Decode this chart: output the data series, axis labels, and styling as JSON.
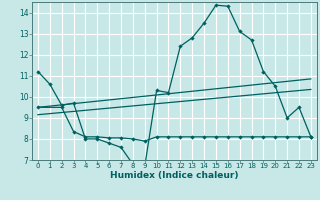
{
  "xlabel": "Humidex (Indice chaleur)",
  "bg_color": "#c8e8e8",
  "grid_color": "#ffffff",
  "line_color": "#006060",
  "xlim": [
    -0.5,
    23.5
  ],
  "ylim": [
    7,
    14.5
  ],
  "xticks": [
    0,
    1,
    2,
    3,
    4,
    5,
    6,
    7,
    8,
    9,
    10,
    11,
    12,
    13,
    14,
    15,
    16,
    17,
    18,
    19,
    20,
    21,
    22,
    23
  ],
  "yticks": [
    7,
    8,
    9,
    10,
    11,
    12,
    13,
    14
  ],
  "curve1_x": [
    0,
    1,
    2,
    3,
    4,
    5,
    6,
    7,
    8,
    9,
    10,
    11,
    12,
    13,
    14,
    15,
    16,
    17,
    18,
    19,
    20,
    21,
    22,
    23
  ],
  "curve1_y": [
    11.2,
    10.6,
    9.6,
    9.7,
    8.0,
    8.0,
    7.8,
    7.6,
    6.8,
    6.7,
    10.3,
    10.2,
    12.4,
    12.8,
    13.5,
    14.35,
    14.3,
    13.1,
    12.7,
    11.2,
    10.5,
    9.0,
    9.5,
    8.1
  ],
  "curve2_x": [
    0,
    2,
    3,
    4,
    5,
    6,
    7,
    8,
    9,
    10,
    11,
    12,
    13,
    14,
    15,
    16,
    17,
    18,
    19,
    20,
    21,
    22,
    23
  ],
  "curve2_y": [
    9.5,
    9.5,
    8.35,
    8.1,
    8.1,
    8.05,
    8.05,
    8.0,
    7.9,
    8.1,
    8.1,
    8.1,
    8.1,
    8.1,
    8.1,
    8.1,
    8.1,
    8.1,
    8.1,
    8.1,
    8.1,
    8.1,
    8.1
  ],
  "trend1_x": [
    0,
    23
  ],
  "trend1_y": [
    9.15,
    10.35
  ],
  "trend2_x": [
    0,
    23
  ],
  "trend2_y": [
    9.5,
    10.85
  ]
}
